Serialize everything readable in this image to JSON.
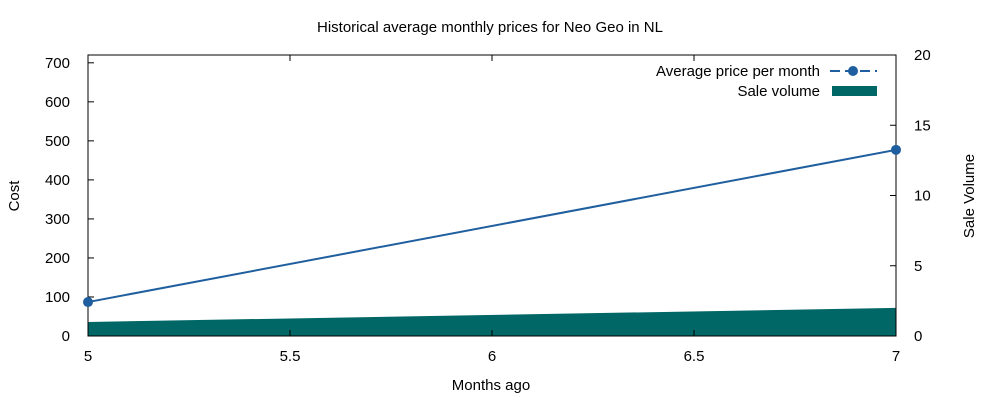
{
  "chart_data": {
    "type": "line",
    "title": "Historical average monthly prices for Neo Geo in NL",
    "xlabel": "Months ago",
    "ylabel": "Cost",
    "y2label": "Sale Volume",
    "xlim": [
      5,
      7
    ],
    "ylim": [
      0,
      720
    ],
    "y2lim": [
      0,
      20
    ],
    "xticks": [
      "5",
      "5.5",
      "6",
      "6.5",
      "7"
    ],
    "xtick_values": [
      5,
      5.5,
      6,
      6.5,
      7
    ],
    "yticks": [
      "0",
      "100",
      "200",
      "300",
      "400",
      "500",
      "600",
      "700"
    ],
    "ytick_values": [
      0,
      100,
      200,
      300,
      400,
      500,
      600,
      700
    ],
    "y2ticks": [
      "0",
      "5",
      "10",
      "15",
      "20"
    ],
    "y2tick_values": [
      0,
      5,
      10,
      15,
      20
    ],
    "legend_position": "top-right",
    "grid": false,
    "series": [
      {
        "name": "Average price per month",
        "kind": "line",
        "axis": "y",
        "color": "#1f5f9f",
        "x": [
          5,
          7
        ],
        "values": [
          87,
          477
        ]
      },
      {
        "name": "Sale volume",
        "kind": "area",
        "axis": "y2",
        "color": "#006666",
        "x": [
          5,
          7
        ],
        "values": [
          1,
          2
        ]
      }
    ]
  }
}
